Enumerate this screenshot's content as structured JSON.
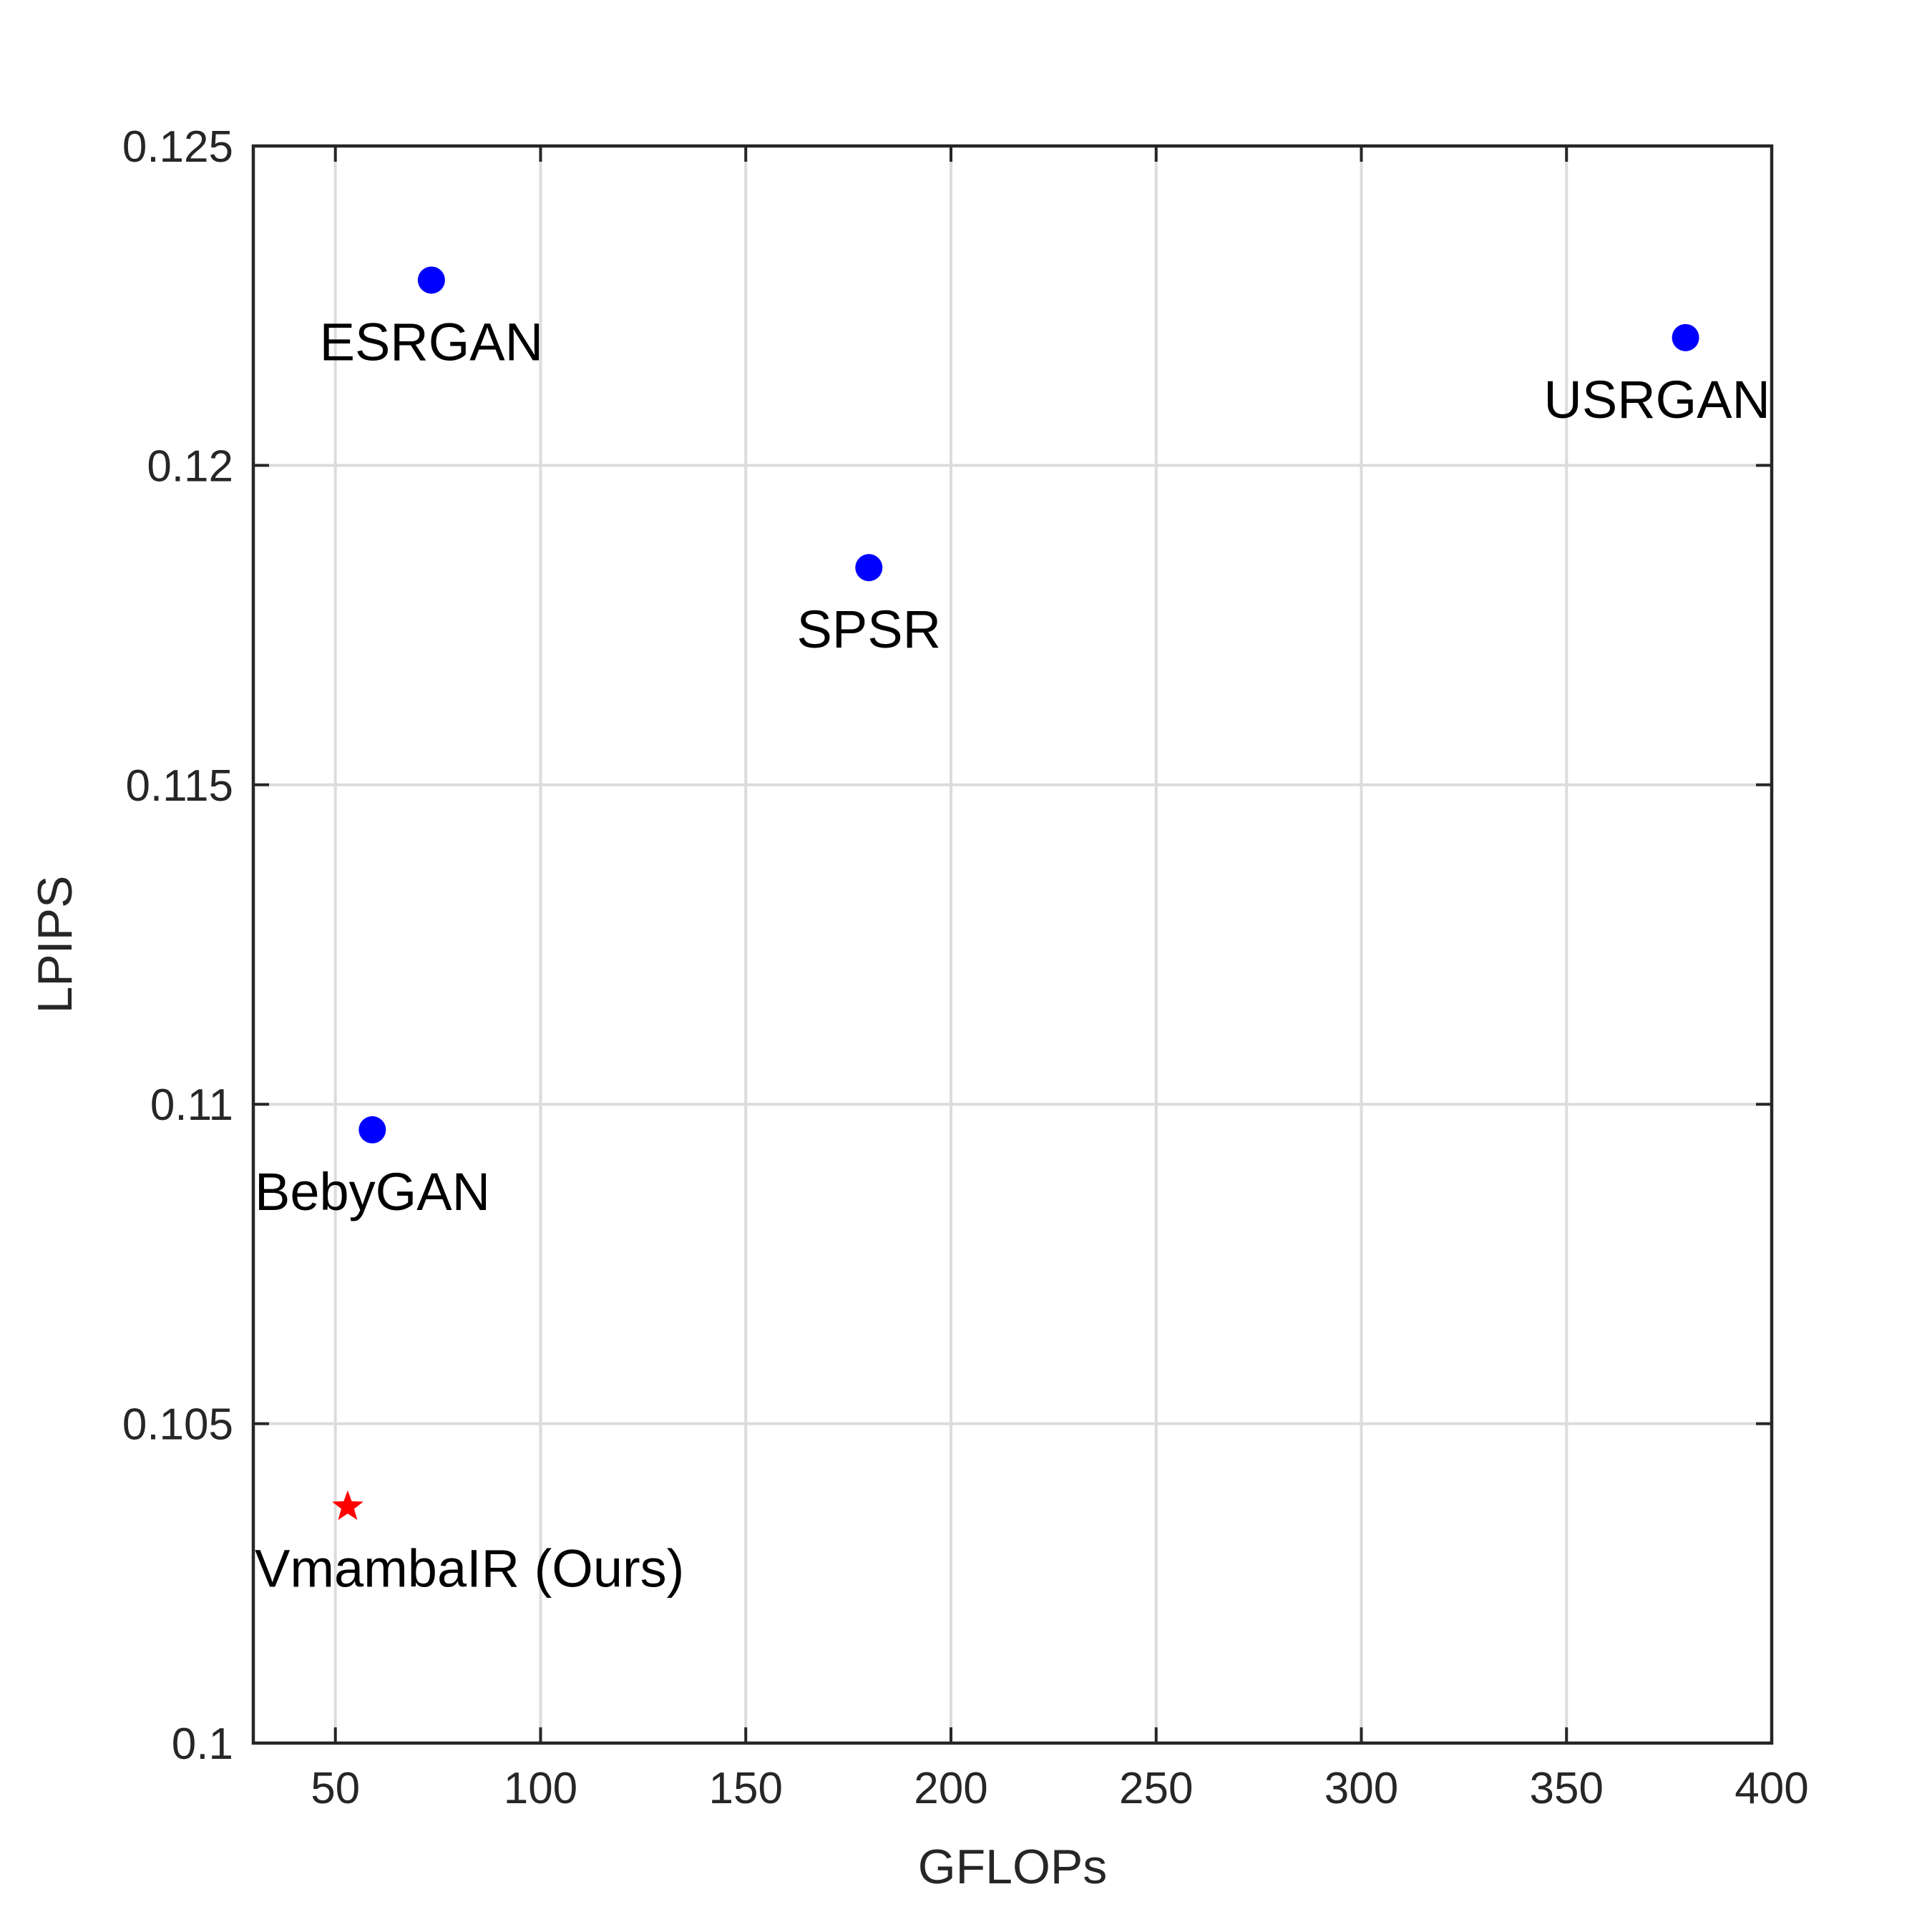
{
  "chart_data": {
    "type": "scatter",
    "xlabel": "GFLOPs",
    "ylabel": "LPIPS",
    "xlim": [
      30,
      400
    ],
    "ylim": [
      0.1,
      0.125
    ],
    "x_ticks": [
      "50",
      "100",
      "150",
      "200",
      "250",
      "300",
      "350",
      "400"
    ],
    "y_ticks": [
      "0.1",
      "0.105",
      "0.11",
      "0.115",
      "0.12",
      "0.125"
    ],
    "grid": true,
    "points": [
      {
        "label": "ESRGAN",
        "x": 73.4,
        "y": 0.1229,
        "marker": "circle",
        "color": "#0000ff"
      },
      {
        "label": "USRGAN",
        "x": 379,
        "y": 0.122,
        "marker": "circle",
        "color": "#0000ff"
      },
      {
        "label": "SPSR",
        "x": 180,
        "y": 0.1184,
        "marker": "circle",
        "color": "#0000ff"
      },
      {
        "label": "BebyGAN",
        "x": 59,
        "y": 0.1096,
        "marker": "circle",
        "color": "#0000ff"
      },
      {
        "label": "VmambaIR (Ours)",
        "x": 53,
        "y": 0.1037,
        "marker": "star",
        "color": "#ff0000"
      }
    ]
  }
}
